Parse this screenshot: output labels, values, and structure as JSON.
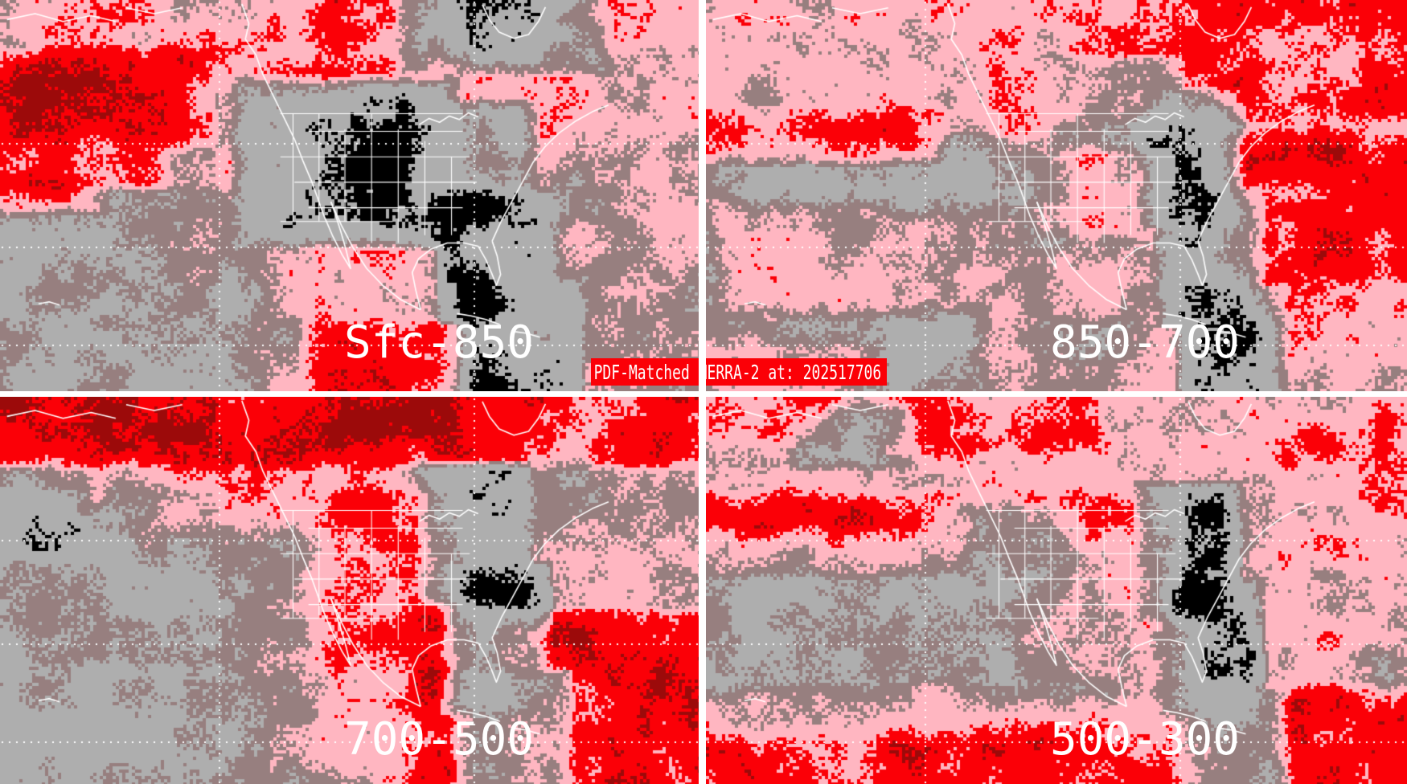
{
  "banner": {
    "label": "PDF-Matched MERRA-2 at: 202517706"
  },
  "panels": [
    {
      "id": "sfc-850",
      "label": "Sfc-850",
      "position": "top-left"
    },
    {
      "id": "850-700",
      "label": "850-700",
      "position": "top-right"
    },
    {
      "id": "700-500",
      "label": "700-500",
      "position": "bottom-left"
    },
    {
      "id": "500-300",
      "label": "500-300",
      "position": "bottom-right"
    }
  ],
  "palette": {
    "background_gray": "#aeaeae",
    "rosy_gray": "#977f7f",
    "pink": "#ffb6c1",
    "red": "#fb0007",
    "dark_red": "#9c0a0a",
    "black": "#000000",
    "map_lines_white": "#ffffff",
    "banner_red": "#fb0007",
    "banner_text_white": "#ffffff",
    "divider_white": "#ffffff"
  }
}
